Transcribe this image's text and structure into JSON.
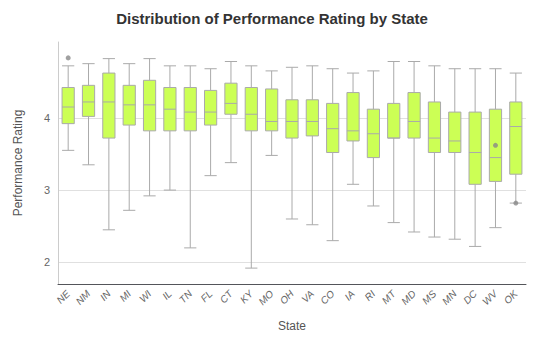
{
  "chart_data": {
    "type": "boxplot",
    "title": "Distribution of Performance Rating by State",
    "xlabel": "State",
    "ylabel": "Performance Rating",
    "categories": [
      "NE",
      "NM",
      "IN",
      "MI",
      "WI",
      "IL",
      "TN",
      "FL",
      "CT",
      "KY",
      "MO",
      "OH",
      "VA",
      "CO",
      "IA",
      "RI",
      "MT",
      "MD",
      "MS",
      "MN",
      "DC",
      "WV",
      "OK"
    ],
    "series": [
      {
        "type": "boxplot",
        "color": "#ccff55",
        "values": [
          {
            "low": 3.55,
            "q1": 3.92,
            "median": 4.15,
            "q3": 4.42,
            "high": 4.72
          },
          {
            "low": 3.35,
            "q1": 4.02,
            "median": 4.22,
            "q3": 4.45,
            "high": 4.75
          },
          {
            "low": 2.45,
            "q1": 3.72,
            "median": 4.22,
            "q3": 4.62,
            "high": 4.82
          },
          {
            "low": 2.72,
            "q1": 3.9,
            "median": 4.18,
            "q3": 4.45,
            "high": 4.75
          },
          {
            "low": 2.92,
            "q1": 3.82,
            "median": 4.18,
            "q3": 4.52,
            "high": 4.82
          },
          {
            "low": 3.0,
            "q1": 3.82,
            "median": 4.12,
            "q3": 4.42,
            "high": 4.72
          },
          {
            "low": 2.2,
            "q1": 3.82,
            "median": 4.08,
            "q3": 4.42,
            "high": 4.72
          },
          {
            "low": 3.2,
            "q1": 3.9,
            "median": 4.08,
            "q3": 4.38,
            "high": 4.68
          },
          {
            "low": 3.38,
            "q1": 4.05,
            "median": 4.2,
            "q3": 4.48,
            "high": 4.78
          },
          {
            "low": 1.92,
            "q1": 3.82,
            "median": 4.05,
            "q3": 4.42,
            "high": 4.72
          },
          {
            "low": 3.48,
            "q1": 3.82,
            "median": 3.95,
            "q3": 4.4,
            "high": 4.65
          },
          {
            "low": 2.6,
            "q1": 3.72,
            "median": 3.95,
            "q3": 4.25,
            "high": 4.7
          },
          {
            "low": 2.52,
            "q1": 3.75,
            "median": 3.95,
            "q3": 4.25,
            "high": 4.72
          },
          {
            "low": 2.3,
            "q1": 3.52,
            "median": 3.85,
            "q3": 4.2,
            "high": 4.68
          },
          {
            "low": 3.08,
            "q1": 3.68,
            "median": 3.82,
            "q3": 4.35,
            "high": 4.62
          },
          {
            "low": 2.78,
            "q1": 3.45,
            "median": 3.78,
            "q3": 4.12,
            "high": 4.65
          },
          {
            "low": 2.55,
            "q1": 3.72,
            "median": 3.72,
            "q3": 4.2,
            "high": 4.78
          },
          {
            "low": 2.42,
            "q1": 3.72,
            "median": 3.95,
            "q3": 4.35,
            "high": 4.78
          },
          {
            "low": 2.35,
            "q1": 3.52,
            "median": 3.72,
            "q3": 4.22,
            "high": 4.72
          },
          {
            "low": 2.32,
            "q1": 3.52,
            "median": 3.68,
            "q3": 4.08,
            "high": 4.68
          },
          {
            "low": 2.22,
            "q1": 3.08,
            "median": 3.52,
            "q3": 4.08,
            "high": 4.68
          },
          {
            "low": 2.48,
            "q1": 3.12,
            "median": 3.45,
            "q3": 4.12,
            "high": 4.68
          },
          {
            "low": 2.82,
            "q1": 3.22,
            "median": 3.88,
            "q3": 4.22,
            "high": 4.62
          }
        ]
      },
      {
        "type": "scatter",
        "color": "#888888",
        "values": [
          [
            4.83
          ],
          [],
          [],
          [],
          [],
          [],
          [],
          [],
          [],
          [],
          [],
          [],
          [],
          [],
          [],
          [],
          [],
          [],
          [],
          [],
          [],
          [
            3.62
          ],
          [
            2.82
          ]
        ]
      }
    ],
    "ylim": [
      1.7,
      5.05
    ],
    "yticks": [
      2,
      3,
      4
    ],
    "grid": true
  }
}
